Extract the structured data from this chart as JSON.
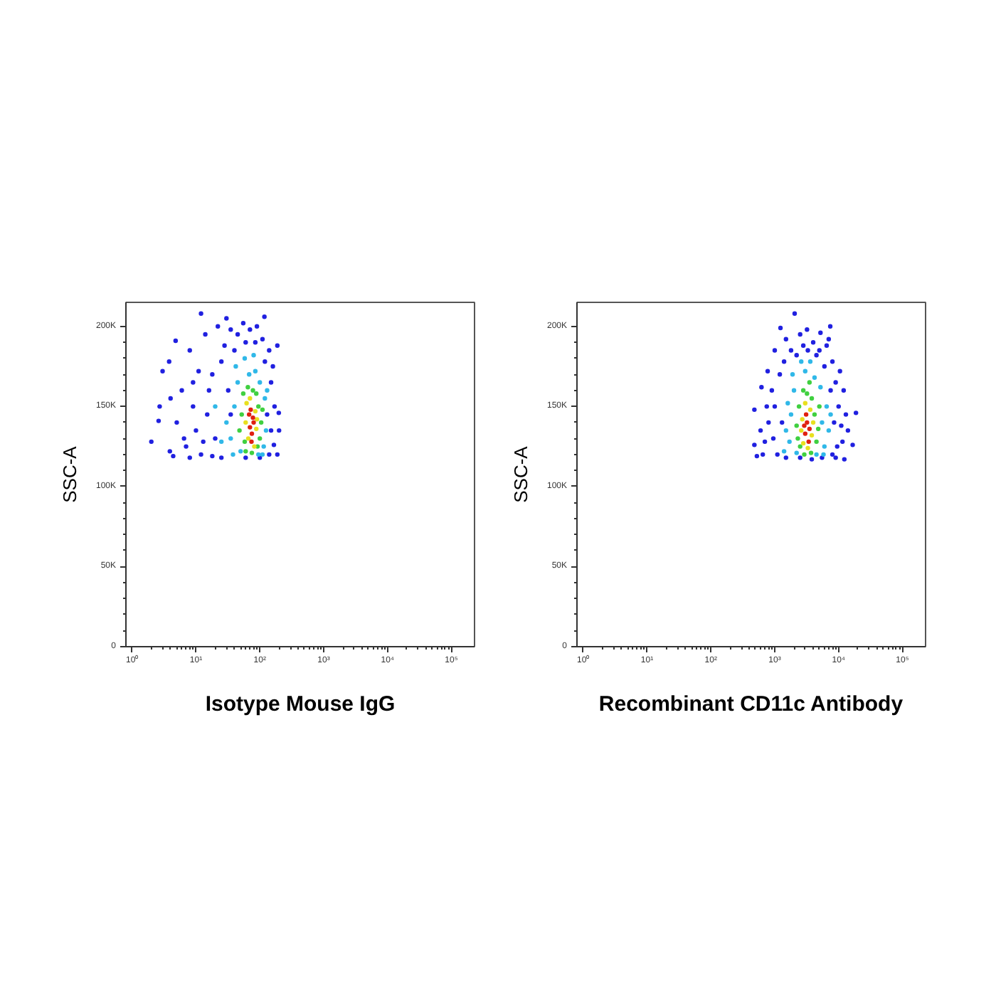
{
  "chart_data": [
    {
      "type": "scatter",
      "xlabel": "Isotype Mouse IgG",
      "ylabel": "SSC-A",
      "log": "x",
      "marker": "circle",
      "xlim": [
        0.8,
        230000
      ],
      "ylim": [
        0,
        215000
      ],
      "xticks": [
        {
          "value": 1,
          "label": "10⁰"
        },
        {
          "value": 10,
          "label": "10¹"
        },
        {
          "value": 100,
          "label": "10²"
        },
        {
          "value": 1000,
          "label": "10³"
        },
        {
          "value": 10000,
          "label": "10⁴"
        },
        {
          "value": 100000,
          "label": "10⁵"
        }
      ],
      "yticks": [
        0,
        {
          "value": 50000,
          "label": "50K"
        },
        {
          "value": 100000,
          "label": "100K"
        },
        {
          "value": 150000,
          "label": "150K"
        },
        {
          "value": 200000,
          "label": "200K"
        }
      ],
      "series": [
        {
          "color": "#2020e0",
          "x": [
            12,
            4.8,
            3,
            3.8,
            2,
            2.6,
            2.7,
            3.9,
            4.4,
            30,
            118,
            188,
            188,
            166,
            198,
            6,
            8,
            10,
            14,
            18,
            22,
            28,
            35,
            45,
            55,
            70,
            90,
            110,
            140,
            160,
            150,
            170,
            150,
            140,
            5,
            7,
            9,
            12,
            15,
            16,
            20,
            25,
            25,
            32,
            40,
            60,
            85,
            120,
            18,
            11,
            6.5,
            9,
            13,
            100,
            60,
            35,
            130,
            200,
            4,
            8
          ],
          "values": [
            208000,
            191000,
            172000,
            178000,
            128000,
            141000,
            150000,
            122000,
            119000,
            205000,
            206000,
            188000,
            120000,
            126000,
            146000,
            160000,
            185000,
            135000,
            195000,
            170000,
            200000,
            188000,
            198000,
            195000,
            202000,
            198000,
            200000,
            192000,
            185000,
            175000,
            165000,
            150000,
            135000,
            120000,
            140000,
            125000,
            150000,
            120000,
            145000,
            160000,
            130000,
            178000,
            118000,
            160000,
            185000,
            190000,
            190000,
            178000,
            119000,
            172000,
            130000,
            165000,
            128000,
            118000,
            118000,
            145000,
            145000,
            135000,
            155000,
            118000
          ]
        },
        {
          "color": "#30b8e8",
          "x": [
            40,
            45,
            120,
            35,
            115,
            68,
            85,
            30,
            125,
            50,
            95,
            42,
            100,
            25,
            130,
            58,
            38,
            110,
            20,
            80
          ],
          "values": [
            150000,
            165000,
            155000,
            130000,
            125000,
            170000,
            172000,
            140000,
            135000,
            122000,
            120000,
            175000,
            165000,
            128000,
            160000,
            180000,
            120000,
            120000,
            150000,
            182000
          ]
        },
        {
          "color": "#40d040",
          "x": [
            55,
            95,
            58,
            100,
            65,
            78,
            52,
            92,
            105,
            60,
            75,
            88,
            48,
            110
          ],
          "values": [
            158000,
            150000,
            128000,
            130000,
            162000,
            160000,
            145000,
            125000,
            140000,
            122000,
            121000,
            158000,
            135000,
            148000
          ]
        },
        {
          "color": "#e8e020",
          "x": [
            62,
            85,
            66,
            88,
            70,
            82,
            60,
            90
          ],
          "values": [
            152000,
            147000,
            130000,
            136000,
            155000,
            125000,
            140000,
            142000
          ]
        },
        {
          "color": "#e02010",
          "x": [
            72,
            78,
            70,
            75,
            80,
            68,
            74
          ],
          "values": [
            148000,
            143000,
            137000,
            133000,
            140000,
            145000,
            128000
          ]
        }
      ]
    },
    {
      "type": "scatter",
      "xlabel": "Recombinant CD11c Antibody",
      "ylabel": "SSC-A",
      "log": "x",
      "marker": "circle",
      "xlim": [
        0.8,
        230000
      ],
      "ylim": [
        0,
        215000
      ],
      "xticks": [
        {
          "value": 1,
          "label": "10⁰"
        },
        {
          "value": 10,
          "label": "10¹"
        },
        {
          "value": 100,
          "label": "10²"
        },
        {
          "value": 1000,
          "label": "10³"
        },
        {
          "value": 10000,
          "label": "10⁴"
        },
        {
          "value": 100000,
          "label": "10⁵"
        }
      ],
      "yticks": [
        0,
        {
          "value": 50000,
          "label": "50K"
        },
        {
          "value": 100000,
          "label": "100K"
        },
        {
          "value": 150000,
          "label": "150K"
        },
        {
          "value": 200000,
          "label": "200K"
        }
      ],
      "series": [
        {
          "color": "#2020e0",
          "x": [
            2050,
            480,
            620,
            775,
            480,
            525,
            18700,
            16600,
            12300,
            7400,
            5200,
            1230,
            1500,
            2500,
            3200,
            4000,
            6500,
            8000,
            9000,
            10000,
            11000,
            9500,
            8000,
            1000,
            900,
            800,
            700,
            1100,
            1000,
            1200,
            1800,
            2800,
            4500,
            6000,
            7500,
            8500,
            11500,
            1300,
            1500,
            2500,
            3800,
            5500,
            9000,
            650,
            750,
            1400,
            2200,
            3300,
            5000,
            7000,
            10500,
            12000,
            600,
            950,
            13000,
            14000
          ],
          "values": [
            208000,
            148000,
            162000,
            172000,
            126000,
            119000,
            146000,
            126000,
            117000,
            200000,
            196000,
            199000,
            192000,
            195000,
            198000,
            190000,
            188000,
            178000,
            165000,
            150000,
            138000,
            125000,
            120000,
            185000,
            160000,
            140000,
            128000,
            120000,
            150000,
            170000,
            185000,
            188000,
            182000,
            175000,
            160000,
            140000,
            128000,
            140000,
            118000,
            118000,
            117000,
            118000,
            118000,
            120000,
            150000,
            178000,
            182000,
            185000,
            185000,
            192000,
            172000,
            160000,
            135000,
            130000,
            145000,
            135000
          ]
        },
        {
          "color": "#30b8e8",
          "x": [
            1800,
            2000,
            5500,
            1700,
            6000,
            3000,
            4200,
            1500,
            6500,
            2200,
            4500,
            1900,
            5200,
            1400,
            7000,
            2600,
            1600,
            5800,
            3600,
            7500
          ],
          "values": [
            145000,
            160000,
            140000,
            128000,
            125000,
            172000,
            168000,
            135000,
            150000,
            121000,
            120000,
            170000,
            162000,
            122000,
            135000,
            178000,
            152000,
            120000,
            178000,
            145000
          ]
        },
        {
          "color": "#40d040",
          "x": [
            2400,
            4200,
            2500,
            4500,
            3200,
            3800,
            2200,
            4800,
            2800,
            2900,
            3700,
            2300,
            5000,
            3500
          ],
          "values": [
            150000,
            145000,
            125000,
            128000,
            158000,
            155000,
            138000,
            136000,
            160000,
            120000,
            121000,
            130000,
            150000,
            165000
          ]
        },
        {
          "color": "#e8e020",
          "x": [
            2700,
            3800,
            2800,
            3600,
            3300,
            2600,
            4000,
            3000
          ],
          "values": [
            142000,
            132000,
            127000,
            148000,
            124000,
            135000,
            140000,
            152000
          ]
        },
        {
          "color": "#e02010",
          "x": [
            3200,
            3000,
            3400,
            3100,
            3500,
            2900
          ],
          "values": [
            140000,
            133000,
            128000,
            145000,
            136000,
            138000
          ]
        }
      ]
    }
  ]
}
